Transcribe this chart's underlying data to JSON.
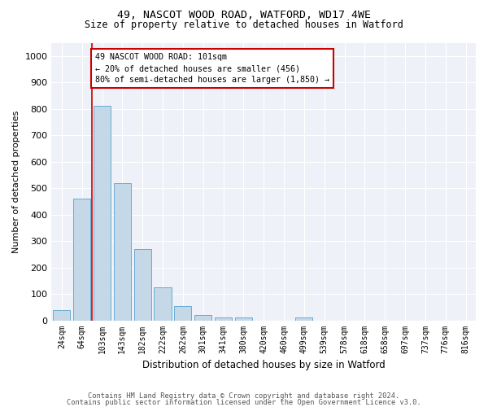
{
  "title_line1": "49, NASCOT WOOD ROAD, WATFORD, WD17 4WE",
  "title_line2": "Size of property relative to detached houses in Watford",
  "xlabel": "Distribution of detached houses by size in Watford",
  "ylabel": "Number of detached properties",
  "bar_color": "#c5d8e8",
  "bar_edge_color": "#6aaad4",
  "annotation_box_color": "#cc0000",
  "property_line_color": "#cc0000",
  "background_color": "#ffffff",
  "plot_bg_color": "#eef2f8",
  "categories": [
    "24sqm",
    "64sqm",
    "103sqm",
    "143sqm",
    "182sqm",
    "222sqm",
    "262sqm",
    "301sqm",
    "341sqm",
    "380sqm",
    "420sqm",
    "460sqm",
    "499sqm",
    "539sqm",
    "578sqm",
    "618sqm",
    "658sqm",
    "697sqm",
    "737sqm",
    "776sqm",
    "816sqm"
  ],
  "values": [
    40,
    460,
    810,
    520,
    270,
    125,
    55,
    20,
    10,
    10,
    0,
    0,
    10,
    0,
    0,
    0,
    0,
    0,
    0,
    0,
    0
  ],
  "property_bar_index": 2,
  "annotation_text": "49 NASCOT WOOD ROAD: 101sqm\n← 20% of detached houses are smaller (456)\n80% of semi-detached houses are larger (1,850) →",
  "footer_line1": "Contains HM Land Registry data © Crown copyright and database right 2024.",
  "footer_line2": "Contains public sector information licensed under the Open Government Licence v3.0.",
  "ylim": [
    0,
    1050
  ],
  "yticks": [
    0,
    100,
    200,
    300,
    400,
    500,
    600,
    700,
    800,
    900,
    1000
  ]
}
